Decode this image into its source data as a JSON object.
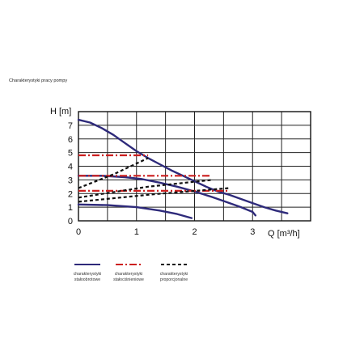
{
  "page": {
    "title": "Charakterystyki pracy pompy"
  },
  "chart_data": {
    "type": "line",
    "title": "",
    "xlabel": "Q [m³/h]",
    "ylabel": "H [m]",
    "xlim": [
      0,
      4
    ],
    "ylim": [
      0,
      8
    ],
    "x_ticks": [
      0,
      1,
      2,
      3
    ],
    "x_ticks_labeled": [
      "0",
      "1",
      "2",
      "3"
    ],
    "y_ticks": [
      0,
      1,
      2,
      3,
      4,
      5,
      6,
      7
    ],
    "y_ticks_labeled": [
      "0",
      "1",
      "2",
      "3",
      "4",
      "5",
      "6",
      "7"
    ],
    "grid": true,
    "legend_position": "bottom",
    "colors": {
      "constant_speed": "#2e2a7a",
      "constant_pressure": "#cc1f1f",
      "proportional": "#111111",
      "grid": "#222222"
    },
    "legend": [
      {
        "group": "constant_speed",
        "line1": "charakterystyki",
        "line2": "stałoobrotowe"
      },
      {
        "group": "constant_pressure",
        "line1": "charakterystyki",
        "line2": "stałociśnieniowe"
      },
      {
        "group": "proportional",
        "line1": "charakterystyki",
        "line2": "proporcjonalne"
      }
    ],
    "series": [
      {
        "group": "constant_speed",
        "style": "solid",
        "points": [
          [
            0,
            7.4
          ],
          [
            0.2,
            7.2
          ],
          [
            0.4,
            6.8
          ],
          [
            0.6,
            6.3
          ],
          [
            0.8,
            5.7
          ],
          [
            1.0,
            5.1
          ],
          [
            1.2,
            4.6
          ],
          [
            1.4,
            4.15
          ],
          [
            1.6,
            3.7
          ],
          [
            1.8,
            3.3
          ],
          [
            2.0,
            2.9
          ],
          [
            2.2,
            2.5
          ],
          [
            2.4,
            2.15
          ],
          [
            2.6,
            1.9
          ],
          [
            2.8,
            1.6
          ],
          [
            3.0,
            1.3
          ],
          [
            3.2,
            1.0
          ],
          [
            3.4,
            0.75
          ],
          [
            3.6,
            0.55
          ]
        ]
      },
      {
        "group": "constant_speed",
        "style": "solid",
        "points": [
          [
            0,
            3.3
          ],
          [
            0.4,
            3.3
          ],
          [
            0.8,
            3.2
          ],
          [
            1.1,
            3.05
          ],
          [
            1.4,
            2.8
          ],
          [
            1.7,
            2.5
          ],
          [
            2.0,
            2.15
          ],
          [
            2.3,
            1.75
          ],
          [
            2.5,
            1.45
          ],
          [
            2.8,
            1.0
          ],
          [
            3.0,
            0.65
          ],
          [
            3.05,
            0.4
          ]
        ]
      },
      {
        "group": "constant_speed",
        "style": "solid",
        "points": [
          [
            0,
            1.2
          ],
          [
            0.5,
            1.15
          ],
          [
            1.0,
            1.0
          ],
          [
            1.4,
            0.75
          ],
          [
            1.7,
            0.5
          ],
          [
            1.95,
            0.2
          ]
        ]
      },
      {
        "group": "constant_pressure",
        "style": "dash-dot",
        "points": [
          [
            0,
            4.8
          ],
          [
            1.2,
            4.8
          ]
        ]
      },
      {
        "group": "constant_pressure",
        "style": "dash-dot",
        "points": [
          [
            0,
            3.3
          ],
          [
            2.3,
            3.3
          ]
        ]
      },
      {
        "group": "constant_pressure",
        "style": "dash-dot",
        "points": [
          [
            0,
            2.2
          ],
          [
            2.6,
            2.2
          ]
        ]
      },
      {
        "group": "proportional",
        "style": "dashed",
        "points": [
          [
            0,
            2.4
          ],
          [
            0.6,
            3.4
          ],
          [
            1.2,
            4.6
          ]
        ]
      },
      {
        "group": "proportional",
        "style": "dashed",
        "points": [
          [
            0,
            1.7
          ],
          [
            1.2,
            2.5
          ],
          [
            2.3,
            3.0
          ]
        ]
      },
      {
        "group": "proportional",
        "style": "dashed",
        "points": [
          [
            0,
            1.4
          ],
          [
            1.3,
            1.95
          ],
          [
            2.6,
            2.4
          ]
        ]
      }
    ]
  }
}
